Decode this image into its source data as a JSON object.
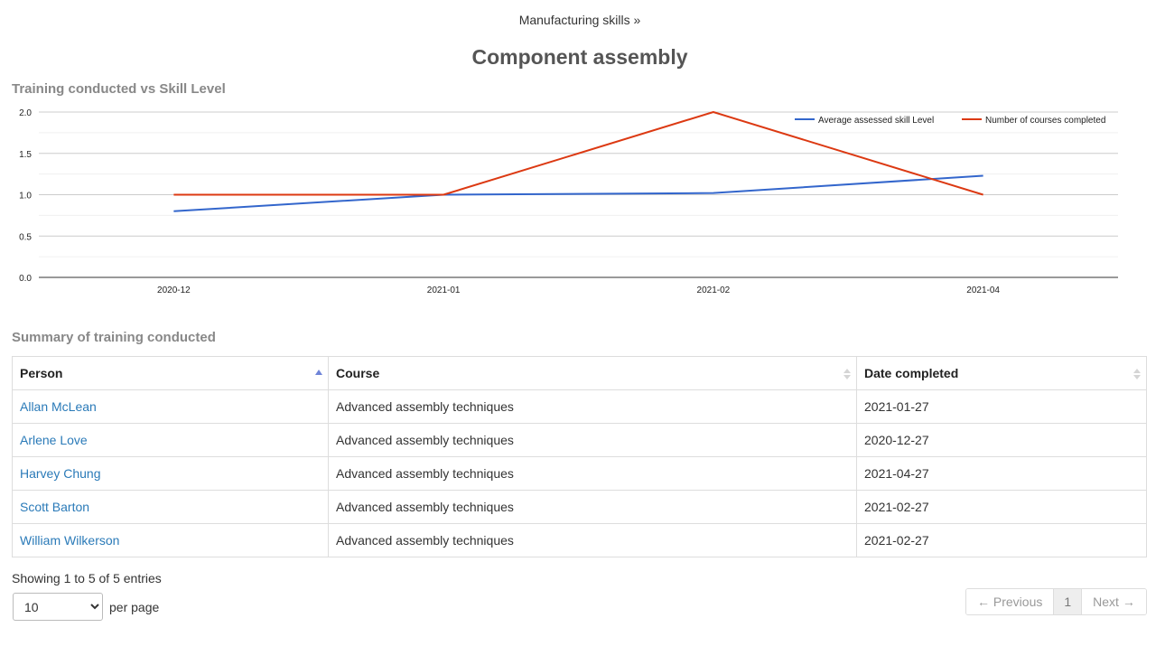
{
  "breadcrumb": {
    "parent": "Manufacturing skills »"
  },
  "title": "Component assembly",
  "chart_heading": "Training conducted vs Skill Level",
  "chart_data": {
    "type": "line",
    "x": [
      "2020-12",
      "2021-01",
      "2021-02",
      "2021-04"
    ],
    "series": [
      {
        "name": "Average assessed skill Level",
        "color": "#3366cc",
        "values": [
          0.8,
          1.0,
          1.02,
          1.23
        ]
      },
      {
        "name": "Number of courses completed",
        "color": "#dc3912",
        "values": [
          1,
          1,
          2,
          1
        ]
      }
    ],
    "yticks": [
      "0.0",
      "0.5",
      "1.0",
      "1.5",
      "2.0"
    ],
    "ylim": [
      0,
      2
    ],
    "grid": true,
    "legend": "top-right"
  },
  "summary_heading": "Summary of training conducted",
  "table": {
    "columns": [
      "Person",
      "Course",
      "Date completed"
    ],
    "rows": [
      {
        "person": "Allan McLean",
        "course": "Advanced assembly techniques",
        "date": "2021-01-27"
      },
      {
        "person": "Arlene Love",
        "course": "Advanced assembly techniques",
        "date": "2020-12-27"
      },
      {
        "person": "Harvey Chung",
        "course": "Advanced assembly techniques",
        "date": "2021-04-27"
      },
      {
        "person": "Scott Barton",
        "course": "Advanced assembly techniques",
        "date": "2021-02-27"
      },
      {
        "person": "William Wilkerson",
        "course": "Advanced assembly techniques",
        "date": "2021-02-27"
      }
    ]
  },
  "info_text": "Showing 1 to 5 of 5 entries",
  "per_page": {
    "value": "10",
    "label": "per page"
  },
  "pagination": {
    "previous": "← Previous",
    "current": "1",
    "next": "Next →"
  }
}
